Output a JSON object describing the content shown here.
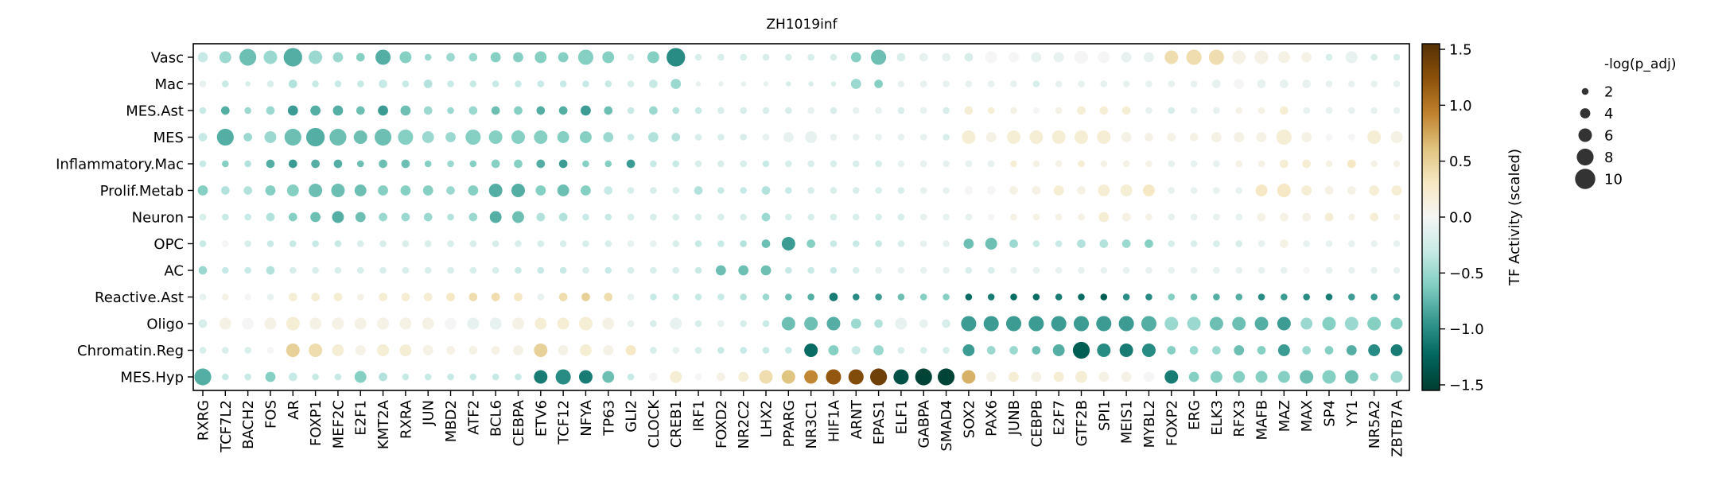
{
  "chart_data": {
    "type": "dotplot",
    "title": "ZH1019inf",
    "ylabel": "",
    "xlabel": "",
    "rows": [
      "Vasc",
      "Mac",
      "MES.Ast",
      "MES",
      "Inflammatory.Mac",
      "Prolif.Metab",
      "Neuron",
      "OPC",
      "AC",
      "Reactive.Ast",
      "Oligo",
      "Chromatin.Reg",
      "MES.Hyp"
    ],
    "columns": [
      "RXRG",
      "TCF7L2",
      "BACH2",
      "FOS",
      "AR",
      "FOXP1",
      "MEF2C",
      "E2F1",
      "KMT2A",
      "RXRA",
      "JUN",
      "MBD2",
      "ATF2",
      "BCL6",
      "CEBPA",
      "ETV6",
      "TCF12",
      "NFYA",
      "TP63",
      "GLI2",
      "CLOCK",
      "CREB1",
      "IRF1",
      "FOXD2",
      "NR2C2",
      "LHX2",
      "PPARG",
      "NR3C1",
      "HIF1A",
      "ARNT",
      "EPAS1",
      "ELF1",
      "GABPA",
      "SMAD4",
      "SOX2",
      "PAX6",
      "JUNB",
      "CEBPB",
      "E2F7",
      "GTF2B",
      "SPI1",
      "MEIS1",
      "MYBL2",
      "FOXP2",
      "ERG",
      "ELK3",
      "RFX3",
      "MAFB",
      "MAZ",
      "MAX",
      "SP4",
      "YY1",
      "NR5A2",
      "ZBTB7A"
    ],
    "activity": [
      [
        -0.3,
        -0.5,
        -0.7,
        -0.5,
        -0.8,
        -0.5,
        -0.5,
        -0.6,
        -0.8,
        -0.6,
        -0.5,
        -0.5,
        -0.5,
        -0.6,
        -0.6,
        -0.6,
        -0.6,
        -0.6,
        -0.6,
        -0.2,
        -0.6,
        -1.0,
        -0.2,
        -0.2,
        -0.2,
        -0.2,
        -0.2,
        -0.2,
        -0.2,
        -0.6,
        -0.7,
        -0.2,
        -0.1,
        -0.1,
        -0.2,
        0.0,
        0.0,
        -0.1,
        -0.1,
        0.0,
        0.0,
        -0.1,
        -0.1,
        0.4,
        0.4,
        0.4,
        0.1,
        0.1,
        0.1,
        0.1,
        -0.2,
        -0.1,
        -0.2,
        -0.2
      ],
      [
        -0.1,
        -0.3,
        -0.2,
        -0.2,
        -0.4,
        -0.3,
        -0.3,
        -0.3,
        -0.3,
        -0.3,
        -0.4,
        -0.3,
        -0.3,
        -0.3,
        -0.3,
        -0.3,
        -0.3,
        -0.3,
        -0.3,
        -0.2,
        -0.3,
        -0.5,
        -0.1,
        -0.1,
        -0.1,
        -0.1,
        -0.2,
        -0.2,
        -0.2,
        -0.5,
        -0.6,
        -0.1,
        -0.1,
        -0.1,
        -0.1,
        -0.1,
        -0.1,
        -0.2,
        -0.1,
        -0.1,
        -0.1,
        -0.1,
        -0.1,
        -0.1,
        -0.1,
        -0.1,
        0.0,
        -0.1,
        -0.1,
        -0.1,
        -0.1,
        -0.1,
        -0.1,
        -0.1
      ],
      [
        -0.3,
        -0.8,
        -0.5,
        -0.5,
        -0.9,
        -0.8,
        -0.8,
        -0.7,
        -0.9,
        -0.7,
        -0.5,
        -0.5,
        -0.5,
        -0.7,
        -0.6,
        -0.8,
        -0.8,
        -0.9,
        -0.7,
        -0.3,
        -0.5,
        -0.4,
        -0.3,
        -0.2,
        -0.2,
        -0.2,
        -0.2,
        -0.1,
        -0.2,
        -0.1,
        -0.1,
        -0.2,
        -0.1,
        -0.2,
        0.2,
        0.2,
        0.1,
        0.0,
        0.1,
        0.2,
        0.2,
        0.2,
        -0.1,
        -0.2,
        -0.1,
        -0.1,
        0.1,
        0.1,
        0.2,
        -0.1,
        -0.1,
        -0.1,
        -0.1,
        -0.1
      ],
      [
        -0.3,
        -0.8,
        -0.5,
        -0.5,
        -0.7,
        -0.8,
        -0.7,
        -0.7,
        -0.7,
        -0.6,
        -0.5,
        -0.5,
        -0.6,
        -0.6,
        -0.6,
        -0.6,
        -0.6,
        -0.6,
        -0.5,
        -0.3,
        -0.4,
        -0.4,
        -0.2,
        -0.2,
        -0.2,
        -0.1,
        -0.1,
        -0.1,
        -0.1,
        -0.1,
        -0.1,
        -0.1,
        -0.1,
        -0.2,
        0.2,
        0.1,
        0.2,
        0.2,
        0.2,
        0.2,
        0.2,
        0.1,
        0.1,
        0.1,
        0.1,
        0.1,
        0.1,
        0.1,
        0.2,
        0.1,
        0.0,
        0.0,
        0.2,
        0.1
      ],
      [
        -0.3,
        -0.6,
        -0.4,
        -0.8,
        -0.9,
        -0.8,
        -0.8,
        -0.7,
        -0.7,
        -0.7,
        -0.6,
        -0.5,
        -0.6,
        -0.6,
        -0.6,
        -0.8,
        -0.9,
        -0.6,
        -0.6,
        -0.9,
        -0.3,
        -0.3,
        -0.2,
        -0.2,
        -0.2,
        -0.3,
        -0.2,
        -0.2,
        -0.2,
        -0.2,
        -0.2,
        -0.1,
        -0.1,
        -0.1,
        -0.1,
        -0.1,
        0.2,
        0.1,
        0.1,
        0.2,
        0.1,
        0.1,
        0.1,
        -0.1,
        -0.1,
        -0.1,
        0.1,
        0.1,
        0.2,
        0.2,
        0.1,
        0.3,
        0.1,
        0.1
      ],
      [
        -0.6,
        -0.4,
        -0.4,
        -0.6,
        -0.6,
        -0.7,
        -0.7,
        -0.7,
        -0.6,
        -0.6,
        -0.6,
        -0.5,
        -0.6,
        -0.8,
        -0.8,
        -0.6,
        -0.7,
        -0.6,
        -0.3,
        -0.2,
        -0.2,
        -0.2,
        -0.4,
        -0.3,
        -0.3,
        -0.4,
        -0.3,
        -0.2,
        -0.2,
        -0.2,
        -0.2,
        -0.2,
        -0.1,
        -0.1,
        0.0,
        0.0,
        0.1,
        0.1,
        0.2,
        0.1,
        0.2,
        0.2,
        0.3,
        -0.1,
        -0.1,
        -0.1,
        -0.1,
        0.3,
        0.3,
        0.2,
        0.1,
        0.1,
        0.2,
        0.2
      ],
      [
        -0.2,
        -0.3,
        -0.3,
        -0.4,
        -0.6,
        -0.7,
        -0.8,
        -0.7,
        -0.5,
        -0.5,
        -0.5,
        -0.4,
        -0.5,
        -0.8,
        -0.7,
        -0.4,
        -0.4,
        -0.3,
        -0.3,
        -0.2,
        -0.2,
        -0.2,
        -0.2,
        -0.2,
        -0.2,
        -0.5,
        -0.2,
        -0.2,
        -0.2,
        -0.2,
        -0.2,
        -0.2,
        -0.1,
        -0.1,
        -0.1,
        0.0,
        0.1,
        0.1,
        0.1,
        0.1,
        0.2,
        0.1,
        0.1,
        -0.1,
        -0.1,
        -0.1,
        -0.1,
        0.1,
        0.1,
        0.1,
        0.2,
        0.1,
        0.2,
        0.1
      ],
      [
        -0.3,
        0.0,
        -0.2,
        -0.3,
        -0.3,
        -0.3,
        -0.3,
        -0.2,
        -0.2,
        -0.2,
        -0.2,
        -0.2,
        -0.2,
        -0.2,
        -0.2,
        -0.2,
        -0.2,
        -0.2,
        -0.2,
        -0.1,
        -0.1,
        -0.2,
        -0.3,
        -0.3,
        -0.4,
        -0.7,
        -0.9,
        -0.6,
        -0.3,
        -0.3,
        -0.3,
        -0.2,
        -0.1,
        -0.1,
        -0.7,
        -0.7,
        -0.5,
        -0.3,
        -0.3,
        -0.4,
        -0.4,
        -0.5,
        -0.6,
        -0.2,
        -0.2,
        -0.2,
        -0.2,
        -0.1,
        0.1,
        -0.1,
        -0.1,
        -0.1,
        -0.1,
        -0.1
      ],
      [
        -0.5,
        -0.3,
        -0.3,
        -0.4,
        -0.2,
        -0.2,
        -0.2,
        -0.2,
        -0.2,
        -0.2,
        -0.2,
        -0.2,
        -0.2,
        -0.2,
        -0.3,
        -0.3,
        -0.3,
        -0.2,
        -0.3,
        -0.2,
        -0.2,
        -0.2,
        -0.3,
        -0.7,
        -0.7,
        -0.7,
        -0.3,
        -0.3,
        -0.3,
        -0.2,
        -0.1,
        -0.1,
        -0.1,
        -0.1,
        -0.2,
        -0.2,
        -0.1,
        -0.1,
        -0.1,
        -0.1,
        -0.1,
        -0.1,
        -0.1,
        -0.1,
        -0.1,
        -0.1,
        -0.1,
        -0.1,
        -0.1,
        0.0,
        -0.1,
        -0.1,
        -0.1,
        -0.1
      ],
      [
        -0.1,
        0.1,
        0.0,
        -0.1,
        0.2,
        0.2,
        0.2,
        0.1,
        0.2,
        0.2,
        0.2,
        0.3,
        0.4,
        0.4,
        0.3,
        -0.1,
        0.4,
        0.5,
        0.4,
        -0.1,
        -0.3,
        -0.3,
        -0.3,
        -0.3,
        -0.4,
        -0.5,
        -0.7,
        -0.8,
        -1.1,
        -1.0,
        -0.9,
        -0.7,
        -0.6,
        -0.6,
        -1.2,
        -1.1,
        -1.2,
        -1.2,
        -1.1,
        -1.2,
        -1.3,
        -1.0,
        -1.0,
        -0.6,
        -0.7,
        -0.8,
        -0.8,
        -1.0,
        -0.9,
        -1.0,
        -1.1,
        -0.9,
        -0.9,
        -0.9
      ],
      [
        -0.2,
        0.1,
        0.0,
        0.1,
        0.2,
        0.1,
        0.1,
        0.1,
        0.1,
        0.1,
        0.1,
        0.0,
        -0.1,
        -0.1,
        0.1,
        0.2,
        0.2,
        0.2,
        0.1,
        -0.1,
        -0.2,
        -0.1,
        -0.2,
        -0.1,
        -0.2,
        -0.3,
        -0.7,
        -0.7,
        -0.8,
        -0.5,
        -0.4,
        -0.1,
        -0.1,
        -0.2,
        -0.9,
        -0.9,
        -0.9,
        -0.9,
        -0.9,
        -0.9,
        -0.9,
        -0.9,
        -0.8,
        -0.5,
        -0.5,
        -0.7,
        -0.7,
        -0.8,
        -0.9,
        -0.5,
        -0.6,
        -0.5,
        -0.6,
        -0.6
      ],
      [
        -0.2,
        -0.2,
        -0.2,
        0.0,
        0.5,
        0.4,
        0.2,
        0.1,
        0.2,
        0.2,
        0.1,
        0.1,
        0.1,
        0.1,
        0.1,
        0.5,
        0.1,
        0.2,
        0.1,
        0.3,
        -0.2,
        -0.1,
        -0.2,
        -0.3,
        -0.3,
        -0.3,
        -0.3,
        -1.2,
        -0.6,
        -0.3,
        -0.5,
        -0.2,
        -0.2,
        -0.2,
        -0.9,
        -0.5,
        -0.5,
        -0.7,
        -0.8,
        -1.3,
        -1.0,
        -1.1,
        -1.0,
        -0.6,
        -0.5,
        -0.5,
        -0.7,
        -0.6,
        -0.9,
        -0.5,
        -0.6,
        -0.8,
        -1.0,
        -1.1
      ],
      [
        -0.8,
        -0.3,
        -0.3,
        -0.6,
        -0.3,
        -0.3,
        -0.3,
        -0.6,
        -0.4,
        -0.3,
        -0.3,
        -0.3,
        -0.3,
        -0.3,
        -0.3,
        -1.1,
        -1.0,
        -1.1,
        -0.7,
        -0.3,
        0.0,
        0.2,
        0.0,
        0.1,
        0.2,
        0.4,
        0.6,
        0.9,
        1.2,
        1.3,
        1.4,
        -1.4,
        -1.5,
        -1.5,
        0.7,
        0.1,
        0.2,
        0.1,
        0.2,
        0.2,
        0.1,
        0.1,
        0.0,
        -1.1,
        -0.6,
        -0.6,
        -0.6,
        -0.6,
        -0.6,
        -0.7,
        -0.6,
        -0.7,
        -0.5,
        -0.5
      ]
    ],
    "significance": [
      [
        4,
        5,
        8,
        6,
        9,
        6,
        4,
        3,
        7,
        5,
        2,
        3,
        3,
        4,
        4,
        5,
        4,
        7,
        5,
        2,
        5,
        9,
        2,
        2,
        2,
        2,
        2,
        2,
        2,
        4,
        7,
        3,
        3,
        3,
        3,
        5,
        4,
        4,
        4,
        6,
        5,
        4,
        4,
        6,
        7,
        7,
        6,
        6,
        5,
        4,
        2,
        5,
        2,
        2
      ],
      [
        2,
        2,
        1,
        2,
        3,
        2,
        2,
        2,
        3,
        2,
        3,
        2,
        2,
        2,
        2,
        2,
        2,
        2,
        2,
        2,
        3,
        4,
        1,
        1,
        1,
        1,
        1,
        1,
        1,
        4,
        3,
        2,
        2,
        2,
        2,
        2,
        2,
        2,
        2,
        2,
        2,
        2,
        2,
        2,
        2,
        3,
        4,
        3,
        3,
        3,
        2,
        2,
        2,
        2
      ],
      [
        2,
        3,
        2,
        3,
        4,
        4,
        4,
        3,
        4,
        4,
        3,
        2,
        3,
        3,
        3,
        3,
        3,
        4,
        3,
        2,
        3,
        2,
        2,
        2,
        2,
        2,
        2,
        2,
        2,
        2,
        2,
        2,
        2,
        2,
        3,
        2,
        2,
        2,
        2,
        3,
        3,
        3,
        2,
        2,
        2,
        2,
        2,
        2,
        3,
        2,
        2,
        2,
        2,
        2
      ],
      [
        3,
        8,
        3,
        5,
        8,
        9,
        8,
        6,
        8,
        7,
        5,
        4,
        7,
        6,
        6,
        6,
        5,
        5,
        4,
        2,
        4,
        3,
        2,
        2,
        2,
        2,
        4,
        5,
        2,
        2,
        2,
        2,
        2,
        2,
        6,
        4,
        6,
        6,
        6,
        6,
        6,
        4,
        3,
        3,
        3,
        4,
        4,
        4,
        7,
        4,
        2,
        2,
        6,
        5
      ],
      [
        2,
        2,
        2,
        3,
        3,
        3,
        3,
        2,
        3,
        3,
        2,
        2,
        2,
        3,
        3,
        3,
        3,
        2,
        2,
        3,
        2,
        2,
        2,
        2,
        2,
        2,
        2,
        2,
        2,
        2,
        2,
        2,
        2,
        2,
        2,
        2,
        2,
        2,
        2,
        2,
        2,
        2,
        2,
        2,
        2,
        2,
        2,
        2,
        3,
        3,
        2,
        3,
        2,
        2
      ],
      [
        4,
        3,
        3,
        4,
        5,
        6,
        6,
        5,
        4,
        4,
        4,
        3,
        4,
        6,
        6,
        4,
        5,
        4,
        3,
        2,
        2,
        2,
        3,
        2,
        2,
        3,
        2,
        2,
        2,
        2,
        2,
        2,
        2,
        2,
        3,
        3,
        3,
        3,
        4,
        3,
        5,
        5,
        5,
        2,
        2,
        2,
        2,
        5,
        6,
        4,
        3,
        3,
        4,
        4
      ],
      [
        2,
        2,
        2,
        3,
        3,
        4,
        5,
        4,
        3,
        3,
        3,
        2,
        3,
        5,
        5,
        3,
        3,
        2,
        2,
        2,
        2,
        2,
        2,
        2,
        2,
        3,
        2,
        2,
        2,
        2,
        2,
        2,
        2,
        2,
        2,
        2,
        2,
        2,
        2,
        2,
        4,
        3,
        2,
        2,
        2,
        2,
        2,
        3,
        3,
        3,
        3,
        2,
        3,
        2
      ],
      [
        2,
        2,
        2,
        2,
        2,
        2,
        2,
        2,
        2,
        2,
        2,
        2,
        2,
        2,
        2,
        2,
        2,
        2,
        2,
        2,
        2,
        2,
        2,
        2,
        2,
        3,
        6,
        3,
        2,
        2,
        2,
        2,
        2,
        2,
        4,
        5,
        3,
        2,
        2,
        3,
        3,
        3,
        3,
        2,
        2,
        2,
        2,
        2,
        3,
        2,
        2,
        2,
        2,
        2
      ],
      [
        3,
        2,
        2,
        3,
        2,
        2,
        2,
        2,
        2,
        2,
        2,
        2,
        2,
        2,
        2,
        2,
        2,
        2,
        2,
        2,
        2,
        2,
        2,
        4,
        4,
        4,
        2,
        2,
        2,
        2,
        2,
        2,
        2,
        2,
        2,
        2,
        2,
        2,
        2,
        2,
        2,
        2,
        2,
        2,
        2,
        2,
        2,
        2,
        2,
        2,
        2,
        2,
        2,
        2
      ],
      [
        2,
        2,
        2,
        2,
        3,
        3,
        3,
        2,
        3,
        3,
        3,
        3,
        3,
        3,
        3,
        2,
        3,
        3,
        3,
        2,
        2,
        2,
        2,
        2,
        2,
        2,
        2,
        2,
        3,
        2,
        2,
        2,
        2,
        2,
        2,
        2,
        2,
        2,
        2,
        2,
        2,
        2,
        2,
        2,
        2,
        2,
        2,
        2,
        2,
        2,
        2,
        2,
        2,
        2
      ],
      [
        3,
        5,
        5,
        5,
        6,
        5,
        5,
        5,
        5,
        5,
        5,
        5,
        5,
        5,
        5,
        5,
        5,
        6,
        5,
        2,
        2,
        5,
        2,
        2,
        2,
        2,
        6,
        6,
        6,
        4,
        3,
        5,
        3,
        3,
        7,
        7,
        7,
        7,
        7,
        7,
        7,
        7,
        7,
        6,
        6,
        6,
        6,
        6,
        6,
        5,
        6,
        6,
        6,
        5
      ],
      [
        2,
        2,
        2,
        2,
        6,
        6,
        5,
        4,
        5,
        5,
        4,
        3,
        3,
        3,
        4,
        6,
        4,
        5,
        4,
        4,
        2,
        2,
        2,
        2,
        2,
        2,
        2,
        6,
        4,
        3,
        4,
        2,
        2,
        2,
        5,
        3,
        3,
        3,
        5,
        8,
        6,
        6,
        6,
        3,
        3,
        3,
        4,
        3,
        5,
        3,
        3,
        4,
        5,
        5
      ],
      [
        8,
        2,
        2,
        4,
        3,
        2,
        2,
        5,
        3,
        2,
        2,
        2,
        2,
        2,
        2,
        6,
        7,
        6,
        5,
        2,
        3,
        5,
        2,
        3,
        4,
        6,
        6,
        6,
        7,
        7,
        8,
        7,
        8,
        8,
        6,
        4,
        4,
        4,
        4,
        5,
        4,
        4,
        4,
        6,
        4,
        5,
        5,
        5,
        5,
        6,
        6,
        6,
        3,
        5
      ]
    ],
    "colorbar": {
      "label": "TF Activity (scaled)",
      "min": -1.55,
      "max": 1.55,
      "ticks": [
        -1.5,
        -1.0,
        -0.5,
        0.0,
        0.5,
        1.0,
        1.5
      ],
      "tick_labels": [
        "−1.5",
        "−1.0",
        "−0.5",
        "0.0",
        "0.5",
        "1.0",
        "1.5"
      ],
      "colors": [
        "#003c30",
        "#01665e",
        "#35978f",
        "#80cdc1",
        "#c7eae5",
        "#f5f5f5",
        "#f6e8c3",
        "#dfc27d",
        "#bf812d",
        "#8c510a",
        "#543005"
      ]
    },
    "size_legend": {
      "title": "-log(p_adj)",
      "values": [
        2,
        4,
        6,
        8,
        10
      ],
      "labels": [
        "2",
        "4",
        "6",
        "8",
        "10"
      ],
      "color": "#333333"
    },
    "grid": false,
    "legend_position": "right"
  }
}
